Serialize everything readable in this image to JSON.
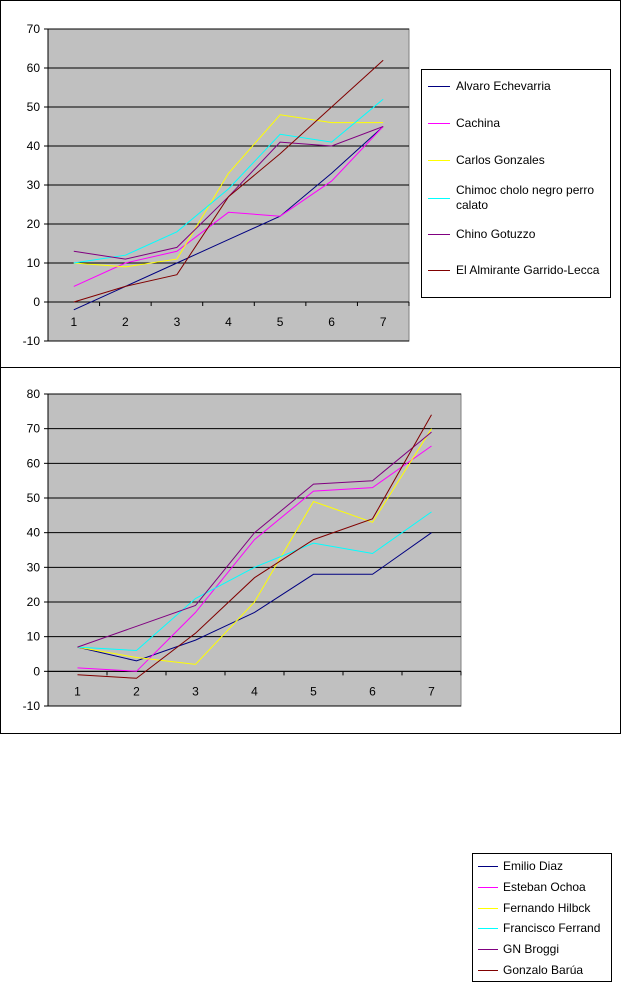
{
  "chart_data": [
    {
      "type": "line",
      "title": "",
      "xlabel": "",
      "ylabel": "",
      "x": [
        1,
        2,
        3,
        4,
        5,
        6,
        7
      ],
      "x_tick_labels": [
        "1",
        "2",
        "3",
        "4",
        "5",
        "6",
        "7"
      ],
      "y_tick_labels": [
        "-10",
        "0",
        "10",
        "20",
        "30",
        "40",
        "50",
        "60",
        "70"
      ],
      "ylim": [
        -10,
        70
      ],
      "grid": true,
      "plot_background": "#c0c0c0",
      "legend_position": "right",
      "series": [
        {
          "name": "Alvaro Echevarria",
          "color": "#000080",
          "values": [
            -2,
            4,
            10,
            16,
            22,
            33,
            45
          ]
        },
        {
          "name": "Cachina",
          "color": "#ff00ff",
          "values": [
            4,
            10,
            13,
            23,
            22,
            31,
            45
          ]
        },
        {
          "name": "Carlos Gonzales",
          "color": "#ffff00",
          "values": [
            10,
            9,
            11,
            33,
            48,
            46,
            46
          ]
        },
        {
          "name": "Chimoc cholo negro perro calato",
          "color": "#00ffff",
          "values": [
            10,
            12,
            18,
            29,
            43,
            41,
            52
          ]
        },
        {
          "name": "Chino Gotuzzo",
          "color": "#800080",
          "values": [
            13,
            11,
            14,
            27,
            41,
            40,
            45
          ]
        },
        {
          "name": "El Almirante Garrido-Lecca",
          "color": "#800000",
          "values": [
            0,
            4,
            7,
            27,
            38,
            50,
            62
          ]
        }
      ]
    },
    {
      "type": "line",
      "title": "",
      "xlabel": "",
      "ylabel": "",
      "x": [
        1,
        2,
        3,
        4,
        5,
        6,
        7
      ],
      "x_tick_labels": [
        "1",
        "2",
        "3",
        "4",
        "5",
        "6",
        "7"
      ],
      "y_tick_labels": [
        "-10",
        "0",
        "10",
        "20",
        "30",
        "40",
        "50",
        "60",
        "70",
        "80"
      ],
      "ylim": [
        -10,
        80
      ],
      "grid": true,
      "plot_background": "#c0c0c0",
      "legend_position": "right",
      "series": [
        {
          "name": "Emilio Diaz",
          "color": "#000080",
          "values": [
            7,
            3,
            9,
            17,
            28,
            28,
            40
          ]
        },
        {
          "name": "Esteban Ochoa",
          "color": "#ff00ff",
          "values": [
            1,
            0,
            17,
            38,
            52,
            53,
            65
          ]
        },
        {
          "name": "Fernando Hilbck",
          "color": "#ffff00",
          "values": [
            7,
            4,
            2,
            20,
            49,
            43,
            70
          ]
        },
        {
          "name": "Francisco Ferrand",
          "color": "#00ffff",
          "values": [
            7,
            6,
            21,
            30,
            37,
            34,
            46
          ]
        },
        {
          "name": "GN Broggi",
          "color": "#800080",
          "values": [
            7,
            13,
            19,
            40,
            54,
            55,
            69
          ]
        },
        {
          "name": "Gonzalo Barúa",
          "color": "#800000",
          "values": [
            -1,
            -2,
            11,
            27,
            38,
            44,
            74
          ]
        }
      ]
    }
  ]
}
